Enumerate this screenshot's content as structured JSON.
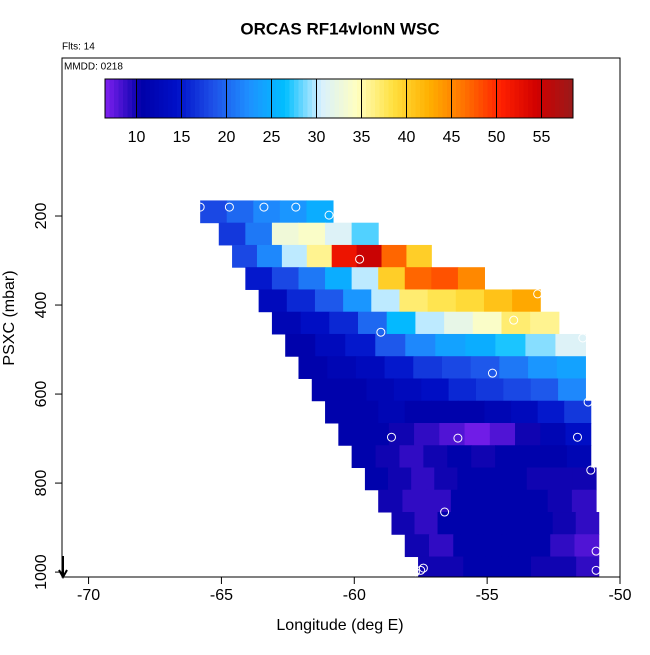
{
  "chart_data": {
    "type": "heatmap",
    "title": "ORCAS RF14vlonN WSC",
    "annotations": [
      "Flts: 14",
      "MMDD: 0218"
    ],
    "xlabel": "Longitude (deg E)",
    "ylabel": "PSXC (mbar)",
    "xlim": [
      -71,
      -50
    ],
    "xticks": [
      -70,
      -65,
      -60,
      -55,
      -50
    ],
    "ylim": [
      -155,
      1011
    ],
    "yticks": [
      200,
      400,
      600,
      800,
      1000
    ],
    "clim": [
      6.5,
      58.5
    ],
    "cticks": [
      10,
      15,
      20,
      25,
      30,
      35,
      40,
      45,
      50,
      55
    ],
    "colorscale": [
      "#8020f0",
      "#0000a8",
      "#0010c8",
      "#1e50e8",
      "#1e90ff",
      "#00bfff",
      "#d8f0ff",
      "#ffffc0",
      "#ffe040",
      "#ffb000",
      "#ff7000",
      "#ff2000",
      "#d00000",
      "#9a1a1a"
    ],
    "rows": [
      {
        "y": [
          165,
          215
        ],
        "x": [
          -65.8,
          -60.8
        ],
        "values": [
          18,
          20,
          22,
          23,
          25
        ]
      },
      {
        "y": [
          215,
          265
        ],
        "x": [
          -65.1,
          -59.1
        ],
        "values": [
          17,
          21,
          33,
          34,
          31,
          28
        ]
      },
      {
        "y": [
          265,
          315
        ],
        "x": [
          -64.6,
          -57.1
        ],
        "values": [
          18,
          22,
          30,
          36,
          52,
          55,
          47,
          40
        ]
      },
      {
        "y": [
          315,
          365
        ],
        "x": [
          -64.1,
          -55.1
        ],
        "values": [
          15,
          18,
          21,
          25,
          30,
          40,
          47,
          48,
          45
        ]
      },
      {
        "y": [
          365,
          415
        ],
        "x": [
          -63.6,
          -53.0
        ],
        "values": [
          13,
          16,
          19,
          23,
          30,
          37,
          38,
          39,
          41,
          43
        ]
      },
      {
        "y": [
          415,
          465
        ],
        "x": [
          -63.1,
          -52.3
        ],
        "values": [
          12,
          14,
          16,
          20,
          26,
          30,
          32,
          34,
          37,
          36
        ]
      },
      {
        "y": [
          465,
          515
        ],
        "x": [
          -62.6,
          -51.3
        ],
        "values": [
          11,
          13,
          15,
          19,
          22,
          24,
          25,
          27,
          29,
          31
        ]
      },
      {
        "y": [
          515,
          565
        ],
        "x": [
          -62.1,
          -51.3
        ],
        "values": [
          11,
          12,
          13,
          15,
          17,
          18,
          19,
          21,
          23,
          24
        ]
      },
      {
        "y": [
          565,
          615
        ],
        "x": [
          -61.6,
          -51.3
        ],
        "values": [
          11,
          11,
          12,
          13,
          14,
          16,
          17,
          18,
          19,
          22
        ]
      },
      {
        "y": [
          615,
          665
        ],
        "x": [
          -61.1,
          -51.1
        ],
        "values": [
          11,
          11,
          12,
          11,
          11,
          11,
          12,
          13,
          15,
          17
        ]
      },
      {
        "y": [
          665,
          715
        ],
        "x": [
          -60.6,
          -51.1
        ],
        "values": [
          11,
          11,
          10,
          9,
          8,
          7,
          8,
          10,
          12,
          14
        ]
      },
      {
        "y": [
          715,
          765
        ],
        "x": [
          -60.1,
          -51.1
        ],
        "values": [
          11,
          10,
          9,
          10,
          11,
          10,
          11,
          11,
          11,
          12
        ]
      },
      {
        "y": [
          765,
          815
        ],
        "x": [
          -59.6,
          -50.9
        ],
        "values": [
          11,
          10,
          9,
          10,
          11,
          11,
          11,
          10,
          10,
          10
        ]
      },
      {
        "y": [
          815,
          865
        ],
        "x": [
          -59.1,
          -50.9
        ],
        "values": [
          10,
          9,
          9,
          11,
          11,
          11,
          11,
          10,
          9
        ]
      },
      {
        "y": [
          865,
          915
        ],
        "x": [
          -58.6,
          -50.8
        ],
        "values": [
          10,
          9,
          11,
          11,
          11,
          11,
          11,
          10,
          9
        ]
      },
      {
        "y": [
          915,
          965
        ],
        "x": [
          -58.1,
          -50.8
        ],
        "values": [
          10,
          9,
          11,
          11,
          11,
          11,
          9,
          8
        ]
      },
      {
        "y": [
          965,
          1015
        ],
        "x": [
          -57.6,
          -50.8
        ],
        "values": [
          10,
          10,
          11,
          11,
          11,
          10,
          10,
          9
        ]
      }
    ],
    "points": {
      "x": [
        -65.8,
        -64.7,
        -63.4,
        -62.2,
        -60.95,
        -59.8,
        -53.1,
        -54.0,
        -59.0,
        -51.4,
        -54.8,
        -51.2,
        -58.6,
        -56.1,
        -51.6,
        -51.1,
        -56.6,
        -50.9,
        -50.9,
        -57.4,
        -57.5,
        -57.7
      ],
      "y": [
        180,
        180,
        180,
        180,
        198,
        297,
        375,
        434,
        461,
        474,
        553,
        618,
        697,
        699,
        697,
        771,
        865,
        953,
        996,
        991,
        996,
        1000
      ]
    }
  }
}
